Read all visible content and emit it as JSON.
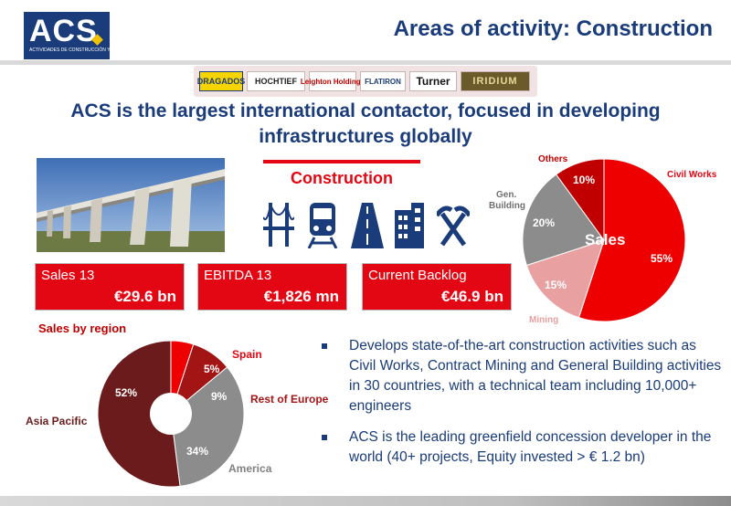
{
  "header": {
    "logo_text": "ACS",
    "logo_subtitle": "ACTIVIDADES DE CONSTRUCCIÓN Y SERVICIOS",
    "title": "Areas of activity: Construction"
  },
  "brands": [
    "DRAGADOS",
    "HOCHTIEF",
    "Leighton Holdings",
    "FLATIRON",
    "Turner",
    "IRIDIUM"
  ],
  "headline": {
    "line1": "ACS is the largest international contactor, focused in developing",
    "line2": "infrastructures globally"
  },
  "construction": {
    "title": "Construction",
    "icons": [
      "bridge-icon",
      "train-icon",
      "road-icon",
      "building-icon",
      "mining-tools-icon"
    ]
  },
  "kpis": [
    {
      "label": "Sales 13",
      "value": "€29.6 bn"
    },
    {
      "label": "EBITDA 13",
      "value": "€1,826 mn"
    },
    {
      "label": "Current Backlog",
      "value": "€46.9 bn"
    }
  ],
  "sales_pie": {
    "center_label": "Sales",
    "labels": {
      "civil_works": "Civil Works",
      "mining": "Mining",
      "gen_building_1": "Gen.",
      "gen_building_2": "Building",
      "others": "Others"
    },
    "values": {
      "civil_works": "55%",
      "mining": "15%",
      "gen_building": "20%",
      "others": "10%"
    }
  },
  "region_pie": {
    "title": "Sales by region",
    "labels": {
      "spain": "Spain",
      "rest_of_europe": "Rest of Europe",
      "america": "America",
      "asia_pacific": "Asia Pacific"
    },
    "values": {
      "spain": "5%",
      "rest_of_europe": "9%",
      "america": "34%",
      "asia_pacific": "52%"
    }
  },
  "chart_data": [
    {
      "type": "pie",
      "title": "Sales",
      "categories": [
        "Civil Works",
        "Mining",
        "Gen. Building",
        "Others"
      ],
      "values": [
        55,
        15,
        20,
        10
      ],
      "colors": [
        "#ee0000",
        "#e8a0a0",
        "#8c8c8c",
        "#c00000"
      ]
    },
    {
      "type": "pie",
      "title": "Sales by region",
      "categories": [
        "Spain",
        "Rest of Europe",
        "America",
        "Asia Pacific"
      ],
      "values": [
        5,
        9,
        34,
        52
      ],
      "colors": [
        "#ee0000",
        "#a31515",
        "#8c8c8c",
        "#6b1b1b"
      ]
    }
  ],
  "bullets": [
    {
      "text": "Develops state-of-the-art construction activities such as Civil Works, Contract Mining and General Building activities in 30 countries, with a technical team including 10,000+ engineers"
    },
    {
      "text": "ACS is the leading greenfield concession developer in the world (40+ projects, Equity invested > € 1.2 bn)"
    }
  ],
  "colors": {
    "brand_blue": "#1a3c7a",
    "accent_red": "#e30613"
  }
}
